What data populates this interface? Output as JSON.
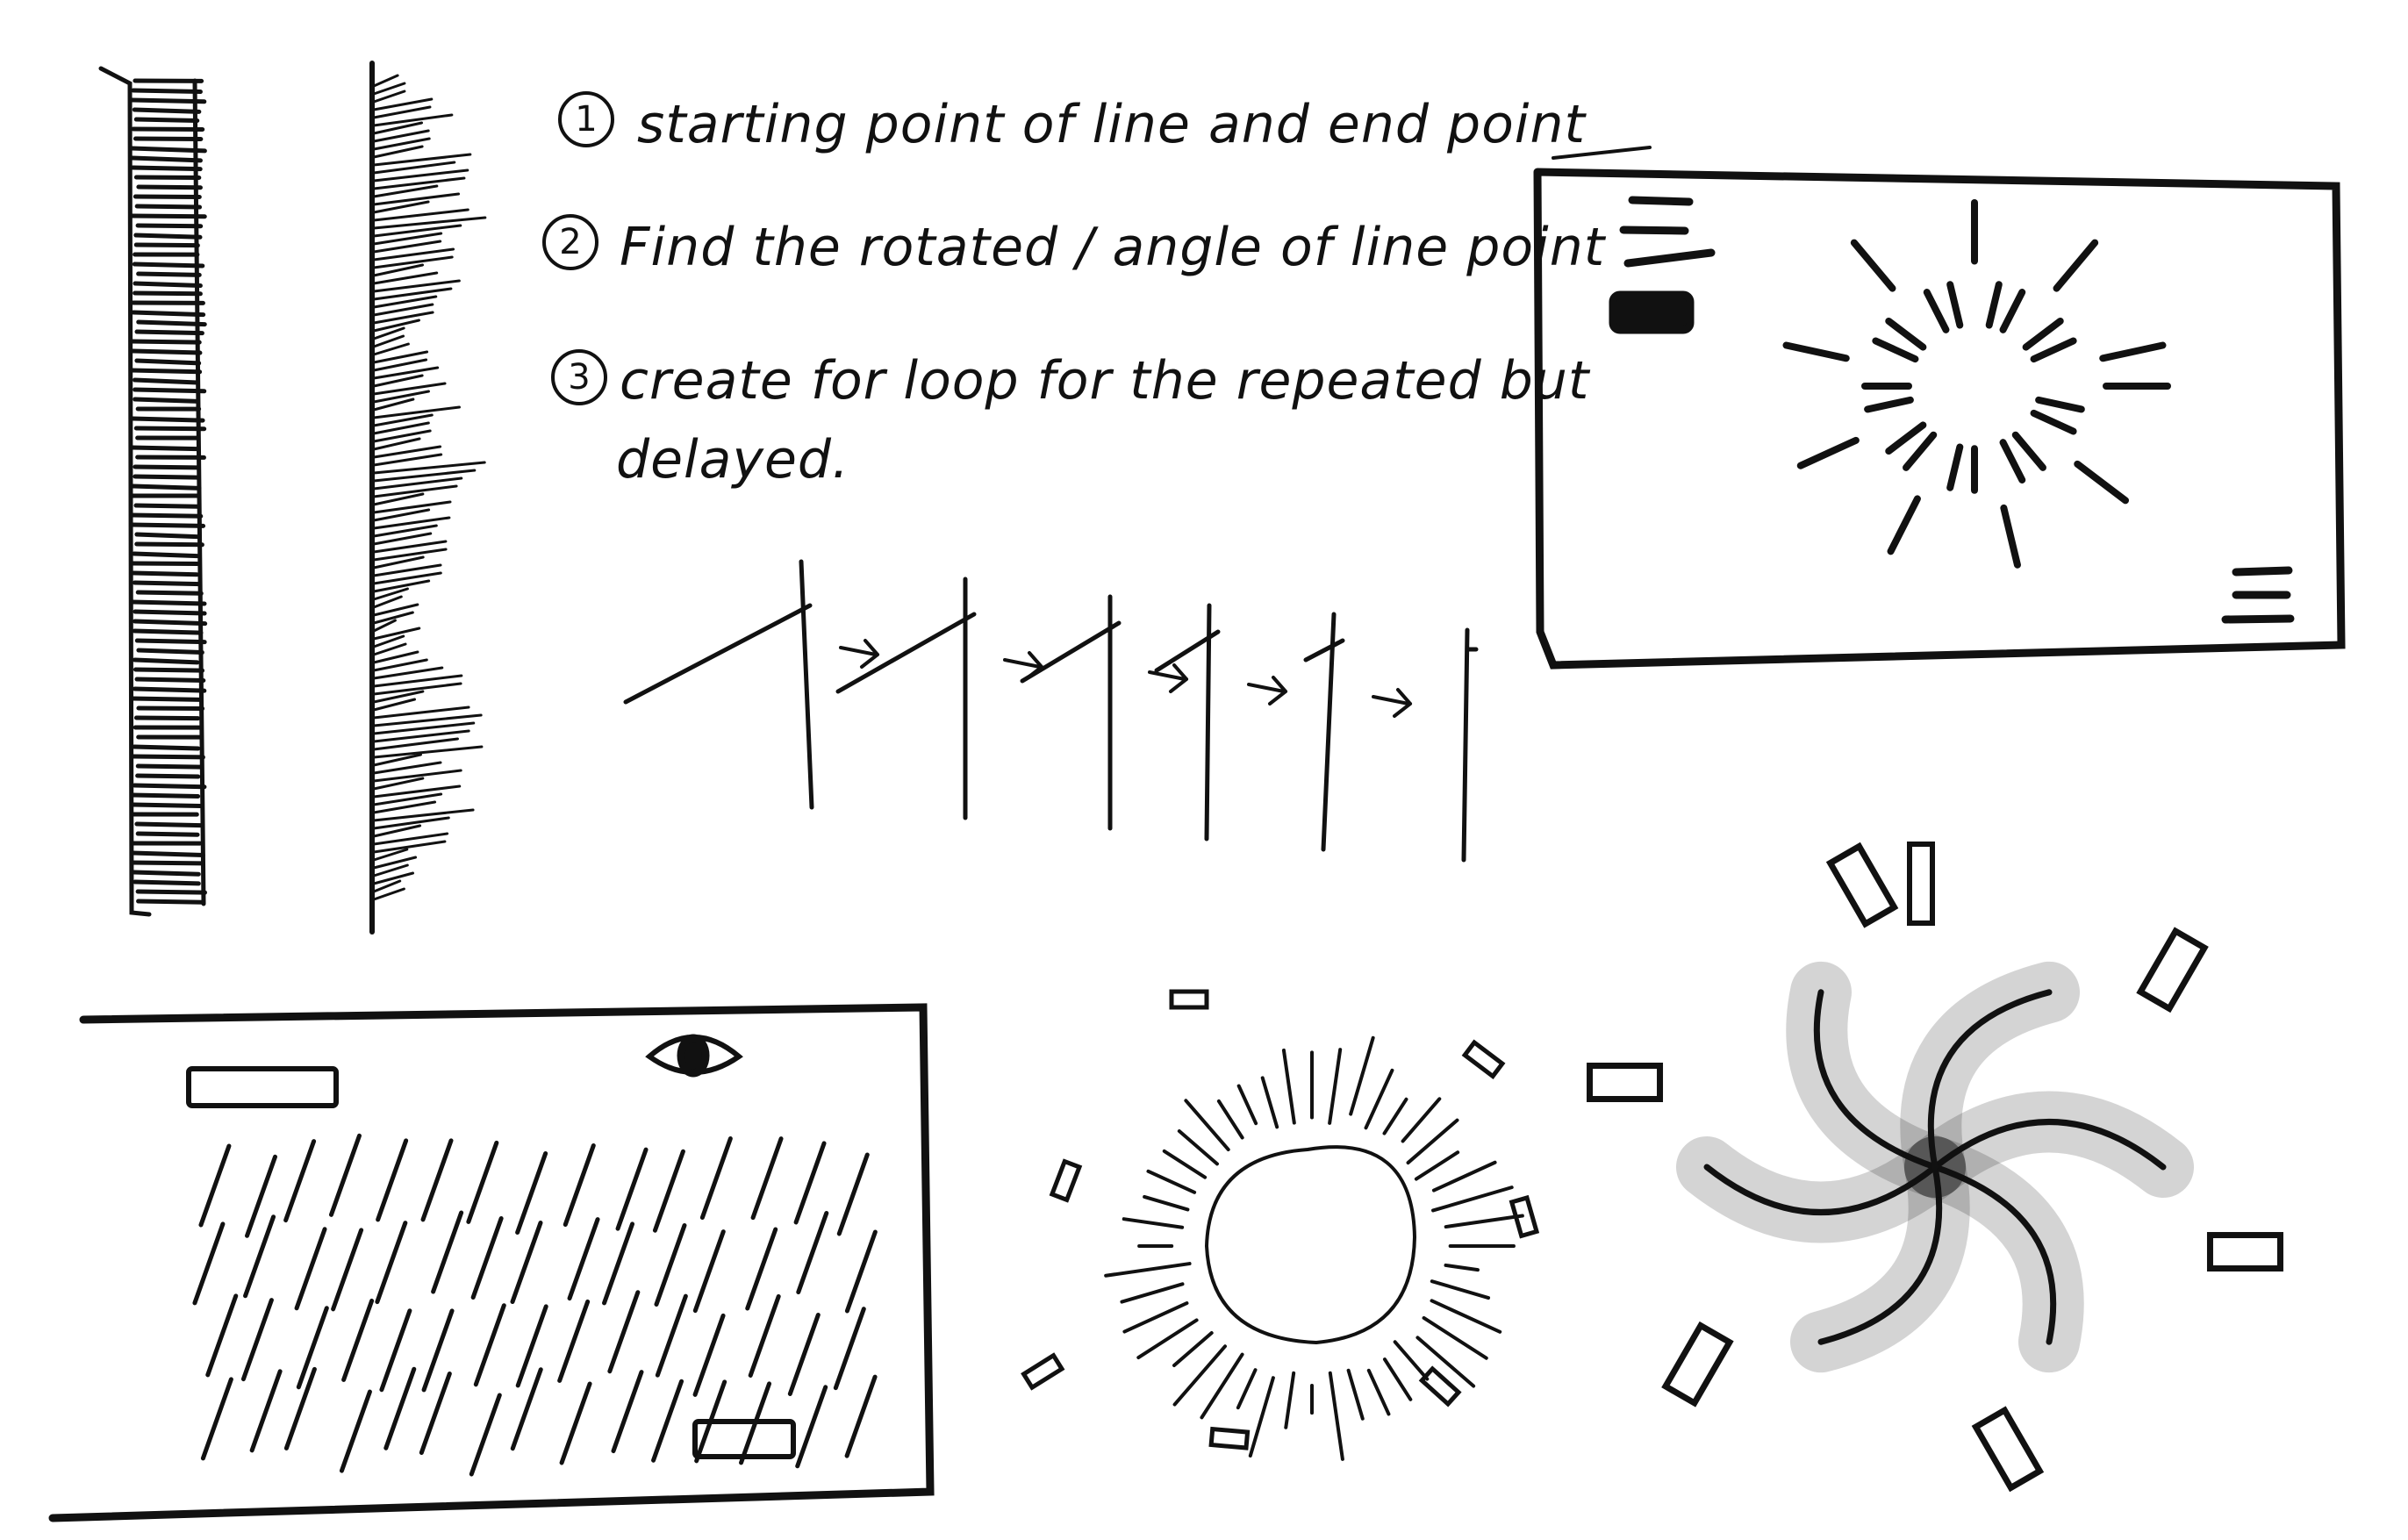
{
  "notes": {
    "step1_num": "1",
    "step1": "starting point of line and end point",
    "step2_num": "2",
    "step2": "Find the rotated / angle of line point",
    "step3_num": "3",
    "step3": "create for loop for the repeated but",
    "step3_cont": "delayed."
  },
  "colors": {
    "ink": "#111111",
    "paper": "#ffffff"
  }
}
